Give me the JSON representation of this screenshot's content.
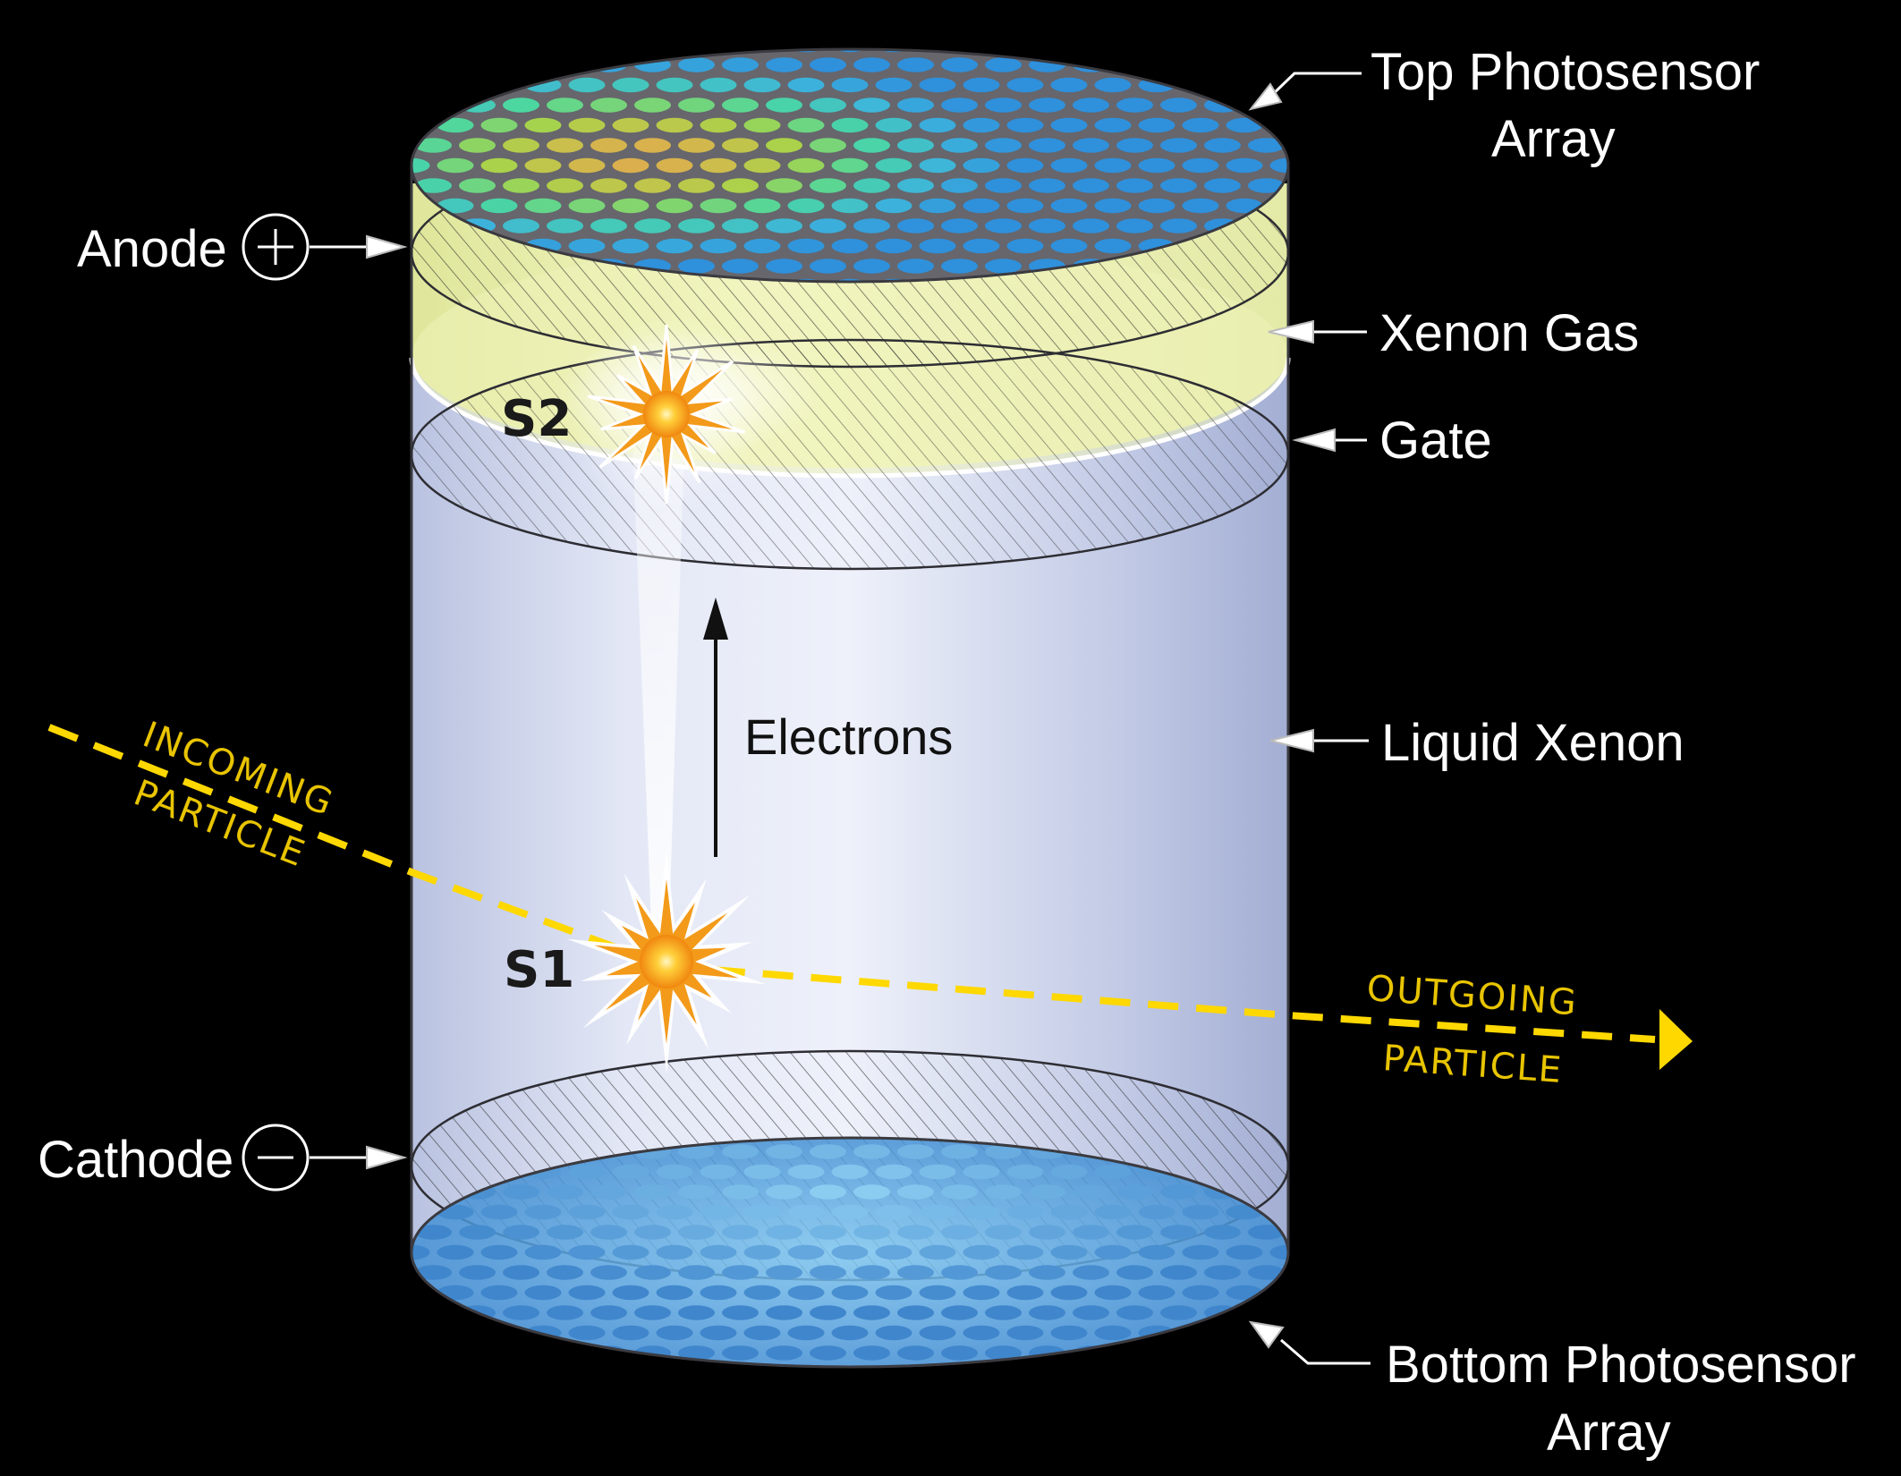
{
  "labels": {
    "top_array": [
      "Top Photosensor",
      "Array"
    ],
    "anode": "Anode",
    "xenon_gas": "Xenon Gas",
    "gate": "Gate",
    "liquid_xenon": "Liquid Xenon",
    "cathode": "Cathode",
    "bottom_array": [
      "Bottom Photosensor",
      "Array"
    ],
    "electrons": "Electrons",
    "s1": "S1",
    "s2": "S2",
    "incoming": [
      "INCOMING",
      "PARTICLE"
    ],
    "outgoing": [
      "OUTGOING",
      "PARTICLE"
    ],
    "anode_symbol": "+",
    "cathode_symbol": "−"
  },
  "colors": {
    "background": "#000000",
    "liquid_xenon": "#c9d2ea",
    "xenon_gas": "#eef3b0",
    "particle_track": "#ffd800",
    "sensor_blue": "#3a8fd8",
    "sensor_frame": "#6e6e72",
    "flash_core": "#ffd24a",
    "flash_outer": "#f39a1a"
  },
  "icons": {
    "anode": "plus-circle-icon",
    "cathode": "minus-circle-icon",
    "pointer": "arrow-left-icon"
  }
}
